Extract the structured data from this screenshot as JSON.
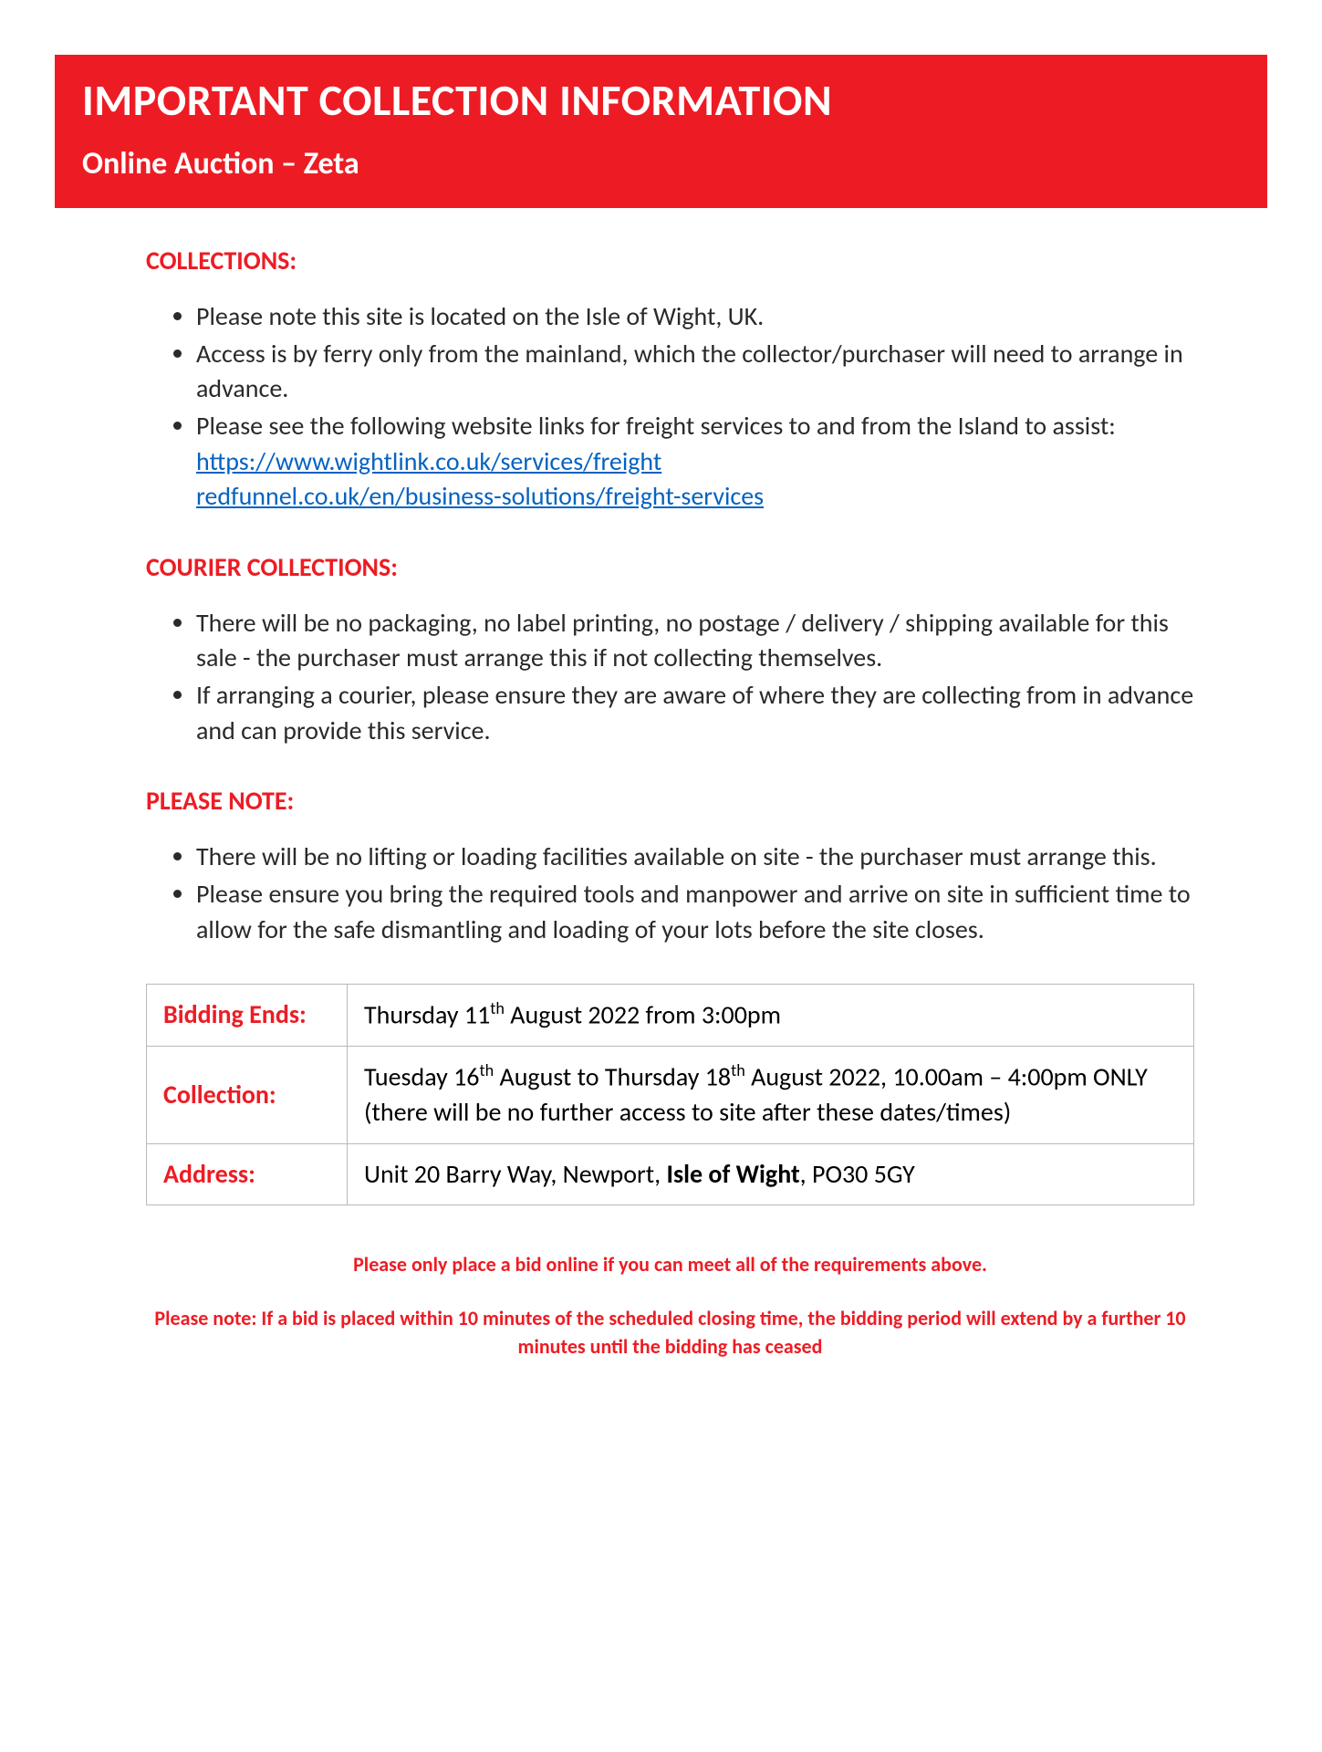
{
  "colors": {
    "red": "#ed1c24",
    "white": "#ffffff",
    "text": "#2a2a2a",
    "link": "#0563c1",
    "tableBorder": "#b9b9b9"
  },
  "typography": {
    "font_family": "Calibri, Arial, sans-serif",
    "header_title_size": 48,
    "header_subtitle_size": 34,
    "section_heading_size": 28,
    "body_size": 28,
    "footer_size": 22
  },
  "header": {
    "title": "IMPORTANT COLLECTION INFORMATION",
    "subtitle": "Online Auction – Zeta"
  },
  "sections": {
    "collections": {
      "heading": "COLLECTIONS:",
      "items": [
        "Please note this site is located on the Isle of Wight, UK.",
        "Access is by ferry only from the mainland, which the collector/purchaser will need to arrange in advance.",
        "Please see the following website links for freight services to and from the Island to assist:"
      ],
      "links": [
        "https://www.wightlink.co.uk/services/freight",
        "redfunnel.co.uk/en/business-solutions/freight-services"
      ]
    },
    "courier": {
      "heading": "COURIER COLLECTIONS:",
      "items": [
        "There will be no packaging, no label printing, no postage / delivery / shipping available for this sale - the purchaser must arrange this if not collecting themselves.",
        "If arranging a courier, please ensure they are aware of where they are collecting from in advance and can provide this service."
      ]
    },
    "please_note": {
      "heading": "PLEASE NOTE:",
      "items": [
        "There will be no lifting or loading facilities available on site - the purchaser must arrange this.",
        "Please ensure you bring the required tools and manpower and arrive on site in sufficient time to allow for the safe dismantling and loading of your lots before the site closes."
      ]
    }
  },
  "info_table": {
    "rows": [
      {
        "label": "Bidding Ends:",
        "value_prefix": "Thursday 11",
        "value_sup": "th",
        "value_suffix": " August 2022 from 3:00pm"
      },
      {
        "label": "Collection:",
        "line1_a": "Tuesday 16",
        "line1_sup1": "th",
        "line1_b": " August to Thursday 18",
        "line1_sup2": "th",
        "line1_c": " August 2022, 10.00am – 4:00pm ONLY",
        "line2": "(there will be no further access to site after these dates/times)"
      },
      {
        "label": "Address:",
        "value_prefix": "Unit 20 Barry Way, Newport, ",
        "value_bold": "Isle of Wight",
        "value_suffix": ", PO30 5GY"
      }
    ]
  },
  "footer": {
    "note1": "Please only place a bid online if you can meet all of the requirements above.",
    "note2_prefix": "Please note:   ",
    "note2_body": "If a bid is placed within 10 minutes of the scheduled closing time, the bidding period will extend by a further 10 minutes until the bidding has ceased"
  }
}
